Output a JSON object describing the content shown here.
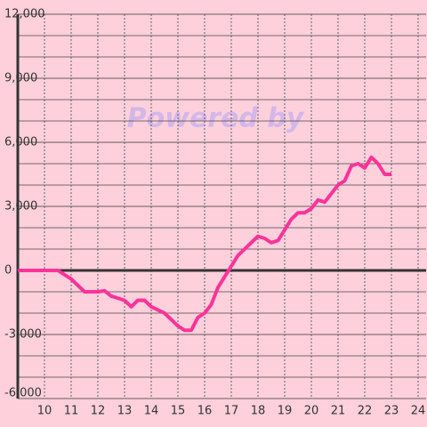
{
  "chart_data": {
    "type": "line",
    "watermark": "Powered by",
    "x": [
      9,
      10.5,
      11,
      11.5,
      12,
      12.25,
      12.5,
      13,
      13.25,
      13.5,
      13.75,
      14,
      14.5,
      15,
      15.25,
      15.5,
      15.75,
      16,
      16.25,
      16.5,
      16.75,
      17,
      17.25,
      17.5,
      18,
      18.25,
      18.5,
      18.75,
      19,
      19.25,
      19.5,
      19.75,
      20,
      20.25,
      20.5,
      20.75,
      21,
      21.25,
      21.5,
      21.75,
      22,
      22.25,
      22.5,
      22.75,
      23
    ],
    "series": [
      {
        "color": "#ff3399",
        "values": [
          0,
          0,
          -400,
          -1000,
          -1000,
          -950,
          -1200,
          -1400,
          -1700,
          -1400,
          -1400,
          -1700,
          -2000,
          -2600,
          -2800,
          -2800,
          -2200,
          -2000,
          -1600,
          -800,
          -300,
          200,
          700,
          1000,
          1600,
          1500,
          1300,
          1400,
          1900,
          2400,
          2700,
          2700,
          2900,
          3300,
          3200,
          3600,
          4000,
          4200,
          4900,
          5000,
          4800,
          5300,
          5000,
          4500,
          4500
        ]
      }
    ],
    "xlim": [
      9,
      24.3
    ],
    "xticks": [
      10,
      11,
      12,
      13,
      14,
      15,
      16,
      17,
      18,
      19,
      20,
      21,
      22,
      23,
      24
    ],
    "ylim": [
      -6000,
      12000
    ],
    "yticks": [
      {
        "value": -6000,
        "label": "-6,000"
      },
      {
        "value": -3000,
        "label": "-3,000"
      },
      0,
      {
        "value": 3000,
        "label": "3,000"
      },
      {
        "value": 6000,
        "label": "6,000"
      },
      {
        "value": 9000,
        "label": "9,000"
      },
      {
        "value": 12000,
        "label": "12,000"
      }
    ],
    "minor_yticks": [
      -5000,
      -4000,
      -2000,
      -1000,
      1000,
      2000,
      4000,
      5000,
      7000,
      8000,
      10000,
      11000
    ],
    "grid": true
  }
}
